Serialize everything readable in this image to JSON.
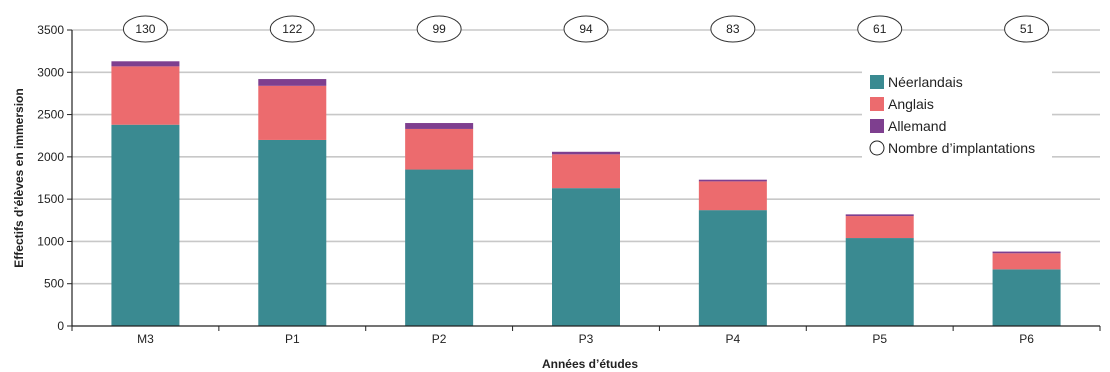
{
  "chart_data": {
    "type": "bar",
    "stacked": true,
    "categories": [
      "M3",
      "P1",
      "P2",
      "P3",
      "P4",
      "P5",
      "P6"
    ],
    "series": [
      {
        "name": "Néerlandais",
        "color": "#3a8a91",
        "values": [
          2380,
          2200,
          1850,
          1630,
          1370,
          1040,
          670
        ]
      },
      {
        "name": "Anglais",
        "color": "#ec6b6e",
        "values": [
          690,
          640,
          480,
          400,
          340,
          260,
          190
        ]
      },
      {
        "name": "Allemand",
        "color": "#7e3f8f",
        "values": [
          60,
          80,
          70,
          30,
          20,
          20,
          20
        ]
      }
    ],
    "implantations": {
      "name": "Nombre d’implantations",
      "values": [
        130,
        122,
        99,
        94,
        83,
        61,
        51
      ]
    },
    "xlabel": "Années d’études",
    "ylabel": "Effectifs d’élèves en immersion",
    "ylim": [
      0,
      3500
    ],
    "yticks": [
      0,
      500,
      1000,
      1500,
      2000,
      2500,
      3000,
      3500
    ],
    "grid": true,
    "legend_position": "top-right"
  }
}
